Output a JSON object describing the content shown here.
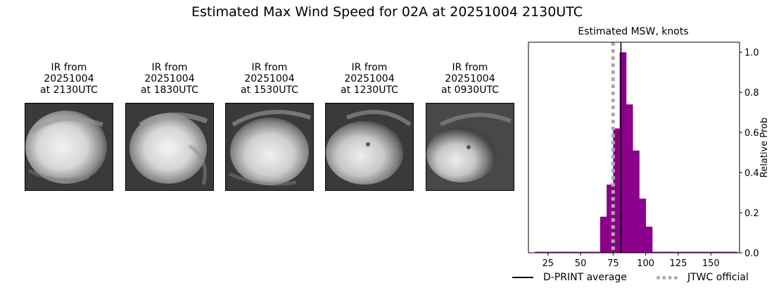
{
  "title": "Estimated Max Wind Speed for 02A at 20251004 2130UTC",
  "ir_panels": [
    {
      "caption": "IR from\n20251004\nat 2130UTC"
    },
    {
      "caption": "IR from\n20251004\nat 1830UTC"
    },
    {
      "caption": "IR from\n20251004\nat 1530UTC"
    },
    {
      "caption": "IR from\n20251004\nat 1230UTC"
    },
    {
      "caption": "IR from\n20251004\nat 0930UTC"
    }
  ],
  "chart_data": {
    "type": "bar",
    "title": "Estimated MSW, knots",
    "xlabel": "",
    "ylabel": "Relative Prob",
    "xlim": [
      10,
      172
    ],
    "ylim": [
      0,
      1.05
    ],
    "xticks": [
      25,
      50,
      75,
      100,
      125,
      150
    ],
    "yticks": [
      0.0,
      0.2,
      0.4,
      0.6,
      0.8,
      1.0
    ],
    "y_axis_position": "right",
    "bar_color": "#8b008b",
    "bin_width": 5,
    "bins": [
      {
        "x": 15,
        "value": 0.005
      },
      {
        "x": 20,
        "value": 0.005
      },
      {
        "x": 25,
        "value": 0.005
      },
      {
        "x": 30,
        "value": 0.005
      },
      {
        "x": 35,
        "value": 0.005
      },
      {
        "x": 40,
        "value": 0.005
      },
      {
        "x": 45,
        "value": 0.005
      },
      {
        "x": 50,
        "value": 0.005
      },
      {
        "x": 55,
        "value": 0.005
      },
      {
        "x": 60,
        "value": 0.005
      },
      {
        "x": 65,
        "value": 0.18
      },
      {
        "x": 70,
        "value": 0.34
      },
      {
        "x": 75,
        "value": 0.62
      },
      {
        "x": 80,
        "value": 1.0
      },
      {
        "x": 85,
        "value": 0.74
      },
      {
        "x": 90,
        "value": 0.51
      },
      {
        "x": 95,
        "value": 0.27
      },
      {
        "x": 100,
        "value": 0.13
      },
      {
        "x": 105,
        "value": 0.005
      },
      {
        "x": 110,
        "value": 0.005
      },
      {
        "x": 115,
        "value": 0.005
      },
      {
        "x": 120,
        "value": 0.005
      },
      {
        "x": 125,
        "value": 0.005
      },
      {
        "x": 130,
        "value": 0.005
      },
      {
        "x": 135,
        "value": 0.005
      },
      {
        "x": 140,
        "value": 0.005
      },
      {
        "x": 145,
        "value": 0.005
      },
      {
        "x": 150,
        "value": 0.005
      },
      {
        "x": 155,
        "value": 0.005
      },
      {
        "x": 160,
        "value": 0.005
      },
      {
        "x": 165,
        "value": 0.005
      }
    ],
    "dprint_average": 81,
    "jtwc_official": 75,
    "legend": [
      {
        "label": "D-PRINT average",
        "color": "#000000",
        "style": "solid"
      },
      {
        "label": "JTWC official",
        "color": "#aaaaaa",
        "style": "dotted"
      }
    ],
    "legend_placement": "bottom"
  }
}
